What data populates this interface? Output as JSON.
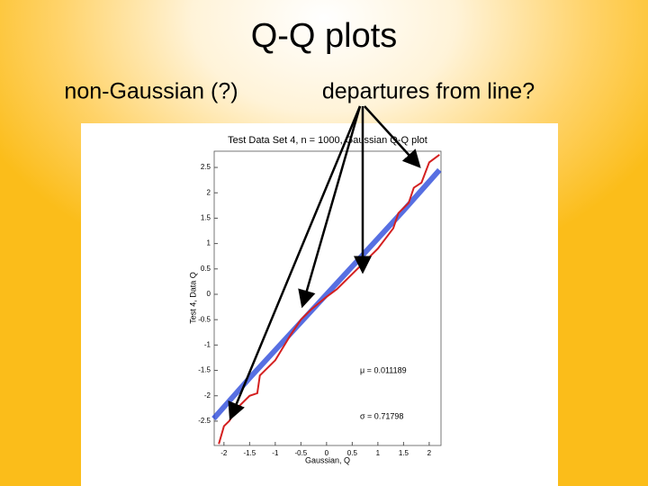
{
  "slide": {
    "title": "Q-Q plots",
    "left_caption": "non-Gaussian (?)",
    "right_caption": "departures from line?"
  },
  "chart_data": {
    "type": "line",
    "title": "Test Data Set 4, n = 1000, Gaussian Q-Q plot",
    "x_label": "Gaussian, Q",
    "y_label": "Test 4, Data Q",
    "annotations": [
      "μ = 0.011189",
      "σ = 0.71798"
    ],
    "xlim": [
      -2.19,
      2.23
    ],
    "ylim": [
      -2.98,
      2.82
    ],
    "xticks": [
      -2,
      -1.5,
      -1,
      -0.5,
      0,
      0.5,
      1,
      1.5,
      2
    ],
    "yticks": [
      -2.5,
      -2,
      -1.5,
      -1,
      -0.5,
      0,
      0.5,
      1,
      1.5,
      2,
      2.5
    ],
    "series": [
      {
        "color": "#1f3fd8",
        "x": [
          -2.2,
          -1.5,
          -1,
          0,
          1,
          1.5,
          2.2
        ],
        "values": [
          -2.45,
          -1.65,
          -1.1,
          0,
          1.1,
          1.65,
          2.45
        ]
      },
      {
        "color": "#d42020",
        "x": [
          -2.1,
          -2.0,
          -1.9,
          -1.7,
          -1.5,
          -1.35,
          -1.3,
          -1.0,
          -0.7,
          -0.5,
          -0.3,
          0,
          0.2,
          0.5,
          0.8,
          1.0,
          1.3,
          1.4,
          1.6,
          1.7,
          1.85,
          2.0,
          2.2
        ],
        "values": [
          -2.95,
          -2.6,
          -2.5,
          -2.2,
          -2.0,
          -1.95,
          -1.6,
          -1.3,
          -0.8,
          -0.5,
          -0.3,
          -0.05,
          0.1,
          0.4,
          0.7,
          0.9,
          1.3,
          1.6,
          1.8,
          2.1,
          2.2,
          2.6,
          2.75
        ]
      }
    ]
  }
}
